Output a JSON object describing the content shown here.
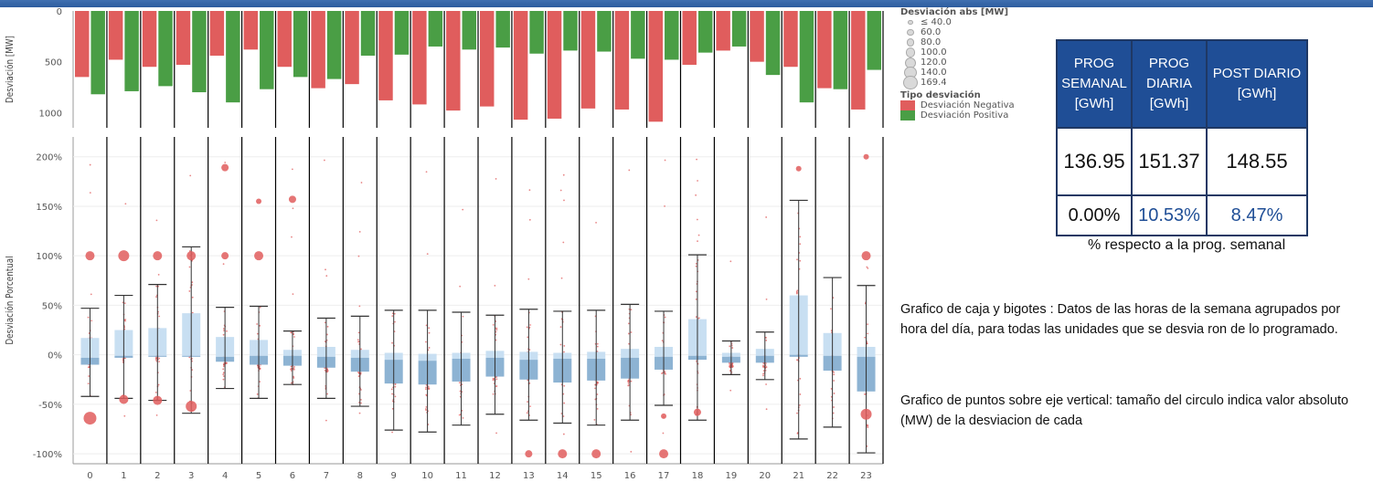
{
  "colors": {
    "negative": "#e05d5d",
    "positive": "#4a9e45",
    "box_upper": "#c8dff2",
    "box_lower": "#8db3d3",
    "header_bg": "#1f4e96",
    "blue_text": "#1f4e96"
  },
  "chart_data": [
    {
      "type": "bar",
      "ylabel": "Desviación [MW]",
      "y_reversed": true,
      "ylim": [
        0,
        1150
      ],
      "yticks": [
        "0",
        "500",
        "1000"
      ],
      "categories": [
        "0",
        "1",
        "2",
        "3",
        "4",
        "5",
        "6",
        "7",
        "8",
        "9",
        "10",
        "11",
        "12",
        "13",
        "14",
        "15",
        "16",
        "17",
        "18",
        "19",
        "20",
        "21",
        "22",
        "23"
      ],
      "series": [
        {
          "name": "Desviación Negativa",
          "values": [
            650,
            480,
            550,
            530,
            440,
            380,
            550,
            760,
            720,
            880,
            920,
            980,
            940,
            1070,
            1060,
            960,
            970,
            1090,
            530,
            390,
            500,
            550,
            760,
            970
          ]
        },
        {
          "name": "Desviación Positiva",
          "values": [
            820,
            790,
            740,
            800,
            900,
            770,
            650,
            670,
            440,
            430,
            350,
            380,
            360,
            420,
            390,
            400,
            470,
            480,
            410,
            350,
            630,
            900,
            770,
            580
          ]
        }
      ]
    },
    {
      "type": "box",
      "ylabel": "Desviación Porcentual",
      "ylim": [
        -110,
        220
      ],
      "yticks": [
        "200%",
        "150%",
        "100%",
        "50%",
        "0%",
        "-50%",
        "-100%"
      ],
      "categories": [
        "0",
        "1",
        "2",
        "3",
        "4",
        "5",
        "6",
        "7",
        "8",
        "9",
        "10",
        "11",
        "12",
        "13",
        "14",
        "15",
        "16",
        "17",
        "18",
        "19",
        "20",
        "21",
        "22",
        "23"
      ],
      "boxes": [
        {
          "min": -42,
          "q1": -10,
          "median": -3,
          "q3": 17,
          "max": 47
        },
        {
          "min": -44,
          "q1": -3,
          "median": -1,
          "q3": 25,
          "max": 60
        },
        {
          "min": -46,
          "q1": -2,
          "median": -1,
          "q3": 27,
          "max": 71
        },
        {
          "min": -59,
          "q1": -2,
          "median": -1,
          "q3": 42,
          "max": 109
        },
        {
          "min": -34,
          "q1": -7,
          "median": -2,
          "q3": 18,
          "max": 48
        },
        {
          "min": -44,
          "q1": -10,
          "median": -1,
          "q3": 15,
          "max": 49
        },
        {
          "min": -30,
          "q1": -11,
          "median": -1,
          "q3": 5,
          "max": 24
        },
        {
          "min": -44,
          "q1": -13,
          "median": -2,
          "q3": 8,
          "max": 37
        },
        {
          "min": -52,
          "q1": -17,
          "median": -3,
          "q3": 5,
          "max": 39
        },
        {
          "min": -76,
          "q1": -29,
          "median": -5,
          "q3": 2,
          "max": 45
        },
        {
          "min": -78,
          "q1": -30,
          "median": -6,
          "q3": 1,
          "max": 45
        },
        {
          "min": -71,
          "q1": -27,
          "median": -4,
          "q3": 2,
          "max": 43
        },
        {
          "min": -60,
          "q1": -22,
          "median": -3,
          "q3": 4,
          "max": 40
        },
        {
          "min": -66,
          "q1": -25,
          "median": -5,
          "q3": 3,
          "max": 46
        },
        {
          "min": -69,
          "q1": -28,
          "median": -4,
          "q3": 2,
          "max": 44
        },
        {
          "min": -71,
          "q1": -26,
          "median": -4,
          "q3": 3,
          "max": 45
        },
        {
          "min": -66,
          "q1": -24,
          "median": -3,
          "q3": 6,
          "max": 51
        },
        {
          "min": -51,
          "q1": -15,
          "median": -2,
          "q3": 8,
          "max": 44
        },
        {
          "min": -66,
          "q1": -5,
          "median": -1,
          "q3": 36,
          "max": 101
        },
        {
          "min": -20,
          "q1": -8,
          "median": -2,
          "q3": 2,
          "max": 14
        },
        {
          "min": -25,
          "q1": -8,
          "median": -1,
          "q3": 6,
          "max": 23
        },
        {
          "min": -85,
          "q1": -2,
          "median": 0,
          "q3": 60,
          "max": 156
        },
        {
          "min": -73,
          "q1": -16,
          "median": -1,
          "q3": 22,
          "max": 78
        },
        {
          "min": -99,
          "q1": -37,
          "median": -2,
          "q3": 8,
          "max": 70
        }
      ],
      "highlights": [
        {
          "hour": 0,
          "value": -64,
          "r": 7
        },
        {
          "hour": 0,
          "value": 100,
          "r": 5
        },
        {
          "hour": 1,
          "value": 100,
          "r": 6
        },
        {
          "hour": 1,
          "value": -45,
          "r": 5
        },
        {
          "hour": 2,
          "value": 100,
          "r": 5
        },
        {
          "hour": 2,
          "value": -46,
          "r": 5
        },
        {
          "hour": 3,
          "value": -52,
          "r": 6
        },
        {
          "hour": 3,
          "value": 100,
          "r": 5
        },
        {
          "hour": 4,
          "value": 189,
          "r": 4
        },
        {
          "hour": 4,
          "value": 100,
          "r": 4
        },
        {
          "hour": 5,
          "value": 100,
          "r": 5
        },
        {
          "hour": 5,
          "value": 155,
          "r": 3
        },
        {
          "hour": 6,
          "value": 157,
          "r": 4
        },
        {
          "hour": 13,
          "value": -100,
          "r": 4
        },
        {
          "hour": 14,
          "value": -100,
          "r": 5
        },
        {
          "hour": 15,
          "value": -100,
          "r": 5
        },
        {
          "hour": 17,
          "value": -100,
          "r": 5
        },
        {
          "hour": 17,
          "value": -62,
          "r": 3
        },
        {
          "hour": 18,
          "value": -58,
          "r": 4
        },
        {
          "hour": 21,
          "value": 188,
          "r": 3
        },
        {
          "hour": 23,
          "value": 100,
          "r": 5
        },
        {
          "hour": 23,
          "value": -60,
          "r": 6
        },
        {
          "hour": 23,
          "value": 200,
          "r": 3
        }
      ]
    }
  ],
  "legend": {
    "size_title": "Desviación abs [MW]",
    "size_items": [
      {
        "label": "≤ 40.0",
        "r": 1
      },
      {
        "label": "60.0",
        "r": 2
      },
      {
        "label": "80.0",
        "r": 3
      },
      {
        "label": "100.0",
        "r": 4
      },
      {
        "label": "120.0",
        "r": 5
      },
      {
        "label": "140.0",
        "r": 6
      },
      {
        "label": "169.4",
        "r": 7
      }
    ],
    "type_title": "Tipo desviación",
    "type_items": [
      {
        "label": "Desviación Negativa",
        "color": "#e05d5d"
      },
      {
        "label": "Desviación Positiva",
        "color": "#4a9e45"
      }
    ]
  },
  "kpi_table": {
    "headers": [
      [
        "PROG",
        "SEMANAL",
        "[GWh]"
      ],
      [
        "PROG",
        "DIARIA",
        "[GWh]"
      ],
      [
        "POST DIARIO",
        "[GWh]"
      ]
    ],
    "values": [
      "136.95",
      "151.37",
      "148.55"
    ],
    "percents": [
      "0.00%",
      "10.53%",
      "8.47%"
    ],
    "note": "% respecto a la prog. semanal"
  },
  "descriptions": [
    "Grafico de caja y  bigotes : Datos de las horas de la semana agrupados por  hora del día, para todas las unidades  que se desvia ron de lo programado.",
    "Grafico de puntos  sobre eje vertical: tamaño del circulo indica valor absoluto (MW) de la desviacion de  cada"
  ]
}
